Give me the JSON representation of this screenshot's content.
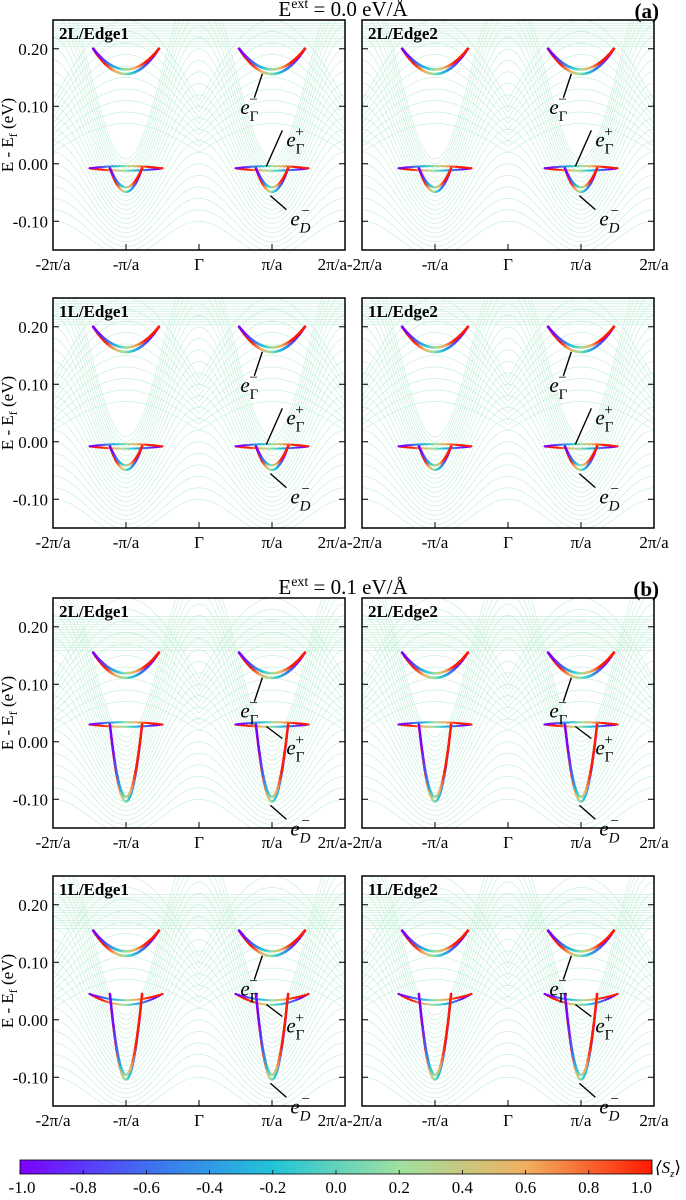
{
  "figure": {
    "sections": [
      {
        "label": "(a)",
        "field_title": "E^ext = 0.0 eV/Å",
        "field_prefix": "E",
        "field_sup": "ext",
        "field_value": " = 0.0 eV/Å"
      },
      {
        "label": "(b)",
        "field_title": "E^ext = 0.1 eV/Å",
        "field_prefix": "E",
        "field_sup": "ext",
        "field_value": " = 0.1 eV/Å"
      }
    ],
    "ylabel_main": "E - E",
    "ylabel_sub": "f",
    "ylabel_unit": " (eV)",
    "xticks": [
      "-2π/a",
      "-π/a",
      "Γ",
      "π/a",
      "2π/a"
    ]
  },
  "chart_data": [
    {
      "type": "line",
      "section": "(a)",
      "title": "2L/Edge1",
      "ylim": [
        -0.15,
        0.25
      ],
      "yticks": [
        "0.20",
        "0.10",
        "0.00",
        "-0.10"
      ],
      "xlim": [
        -2,
        2
      ],
      "series": [
        {
          "name": "upper",
          "min_energy": 0.16,
          "edge_energy": 0.2
        },
        {
          "name": "middle",
          "min_energy": -0.008,
          "edge_energy": -0.008
        },
        {
          "name": "lower",
          "min_energy": -0.045,
          "edge_energy": -0.008
        }
      ],
      "annotations": [
        {
          "text": "e_Γ^-",
          "state": "Γ",
          "sign": "−",
          "energy": 0.16
        },
        {
          "text": "e_Γ^+",
          "state": "Γ",
          "sign": "+",
          "energy": -0.008
        },
        {
          "text": "e_D^-",
          "state": "D",
          "sign": "−",
          "energy": -0.045
        }
      ]
    },
    {
      "type": "line",
      "section": "(a)",
      "title": "2L/Edge2",
      "ylim": [
        -0.15,
        0.25
      ],
      "yticks": [
        "0.20",
        "0.10",
        "0.00",
        "-0.10"
      ],
      "xlim": [
        -2,
        2
      ],
      "series": [
        {
          "name": "upper",
          "min_energy": 0.16,
          "edge_energy": 0.2
        },
        {
          "name": "middle",
          "min_energy": -0.008,
          "edge_energy": -0.008
        },
        {
          "name": "lower",
          "min_energy": -0.045,
          "edge_energy": -0.008
        }
      ],
      "annotations": [
        {
          "text": "e_Γ^-",
          "state": "Γ",
          "sign": "−",
          "energy": 0.16
        },
        {
          "text": "e_Γ^+",
          "state": "Γ",
          "sign": "+",
          "energy": -0.008
        },
        {
          "text": "e_D^-",
          "state": "D",
          "sign": "−",
          "energy": -0.045
        }
      ]
    },
    {
      "type": "line",
      "section": "(a)",
      "title": "1L/Edge1",
      "ylim": [
        -0.15,
        0.25
      ],
      "yticks": [
        "0.20",
        "0.10",
        "0.00",
        "-0.10"
      ],
      "xlim": [
        -2,
        2
      ],
      "series": [
        {
          "name": "upper",
          "min_energy": 0.16,
          "edge_energy": 0.2
        },
        {
          "name": "middle",
          "min_energy": -0.008,
          "edge_energy": -0.008
        },
        {
          "name": "lower",
          "min_energy": -0.045,
          "edge_energy": -0.008
        }
      ],
      "annotations": [
        {
          "text": "e_Γ^-",
          "state": "Γ",
          "sign": "−",
          "energy": 0.16
        },
        {
          "text": "e_Γ^+",
          "state": "Γ",
          "sign": "+",
          "energy": -0.008
        },
        {
          "text": "e_D^-",
          "state": "D",
          "sign": "−",
          "energy": -0.045
        }
      ]
    },
    {
      "type": "line",
      "section": "(a)",
      "title": "1L/Edge2",
      "ylim": [
        -0.15,
        0.25
      ],
      "yticks": [
        "0.20",
        "0.10",
        "0.00",
        "-0.10"
      ],
      "xlim": [
        -2,
        2
      ],
      "series": [
        {
          "name": "upper",
          "min_energy": 0.16,
          "edge_energy": 0.2
        },
        {
          "name": "middle",
          "min_energy": -0.008,
          "edge_energy": -0.008
        },
        {
          "name": "lower",
          "min_energy": -0.045,
          "edge_energy": -0.008
        }
      ],
      "annotations": [
        {
          "text": "e_Γ^-",
          "state": "Γ",
          "sign": "−",
          "energy": 0.16
        },
        {
          "text": "e_Γ^+",
          "state": "Γ",
          "sign": "+",
          "energy": -0.008
        },
        {
          "text": "e_D^-",
          "state": "D",
          "sign": "−",
          "energy": -0.045
        }
      ]
    },
    {
      "type": "line",
      "section": "(b)",
      "title": "2L/Edge1",
      "ylim": [
        -0.15,
        0.25
      ],
      "yticks": [
        "0.20",
        "0.10",
        "0.00",
        "-0.10"
      ],
      "xlim": [
        -2,
        2
      ],
      "series": [
        {
          "name": "upper",
          "min_energy": 0.115,
          "edge_energy": 0.155
        },
        {
          "name": "middle",
          "min_energy": 0.03,
          "edge_energy": 0.03
        },
        {
          "name": "lower",
          "min_energy": -0.1,
          "edge_energy": 0.03
        }
      ],
      "annotations": [
        {
          "text": "e_Γ^-",
          "state": "Γ",
          "sign": "−",
          "energy": 0.115
        },
        {
          "text": "e_Γ^+",
          "state": "Γ",
          "sign": "+",
          "energy": 0.03
        },
        {
          "text": "e_D^-",
          "state": "D",
          "sign": "−",
          "energy": -0.1
        }
      ]
    },
    {
      "type": "line",
      "section": "(b)",
      "title": "2L/Edge2",
      "ylim": [
        -0.15,
        0.25
      ],
      "yticks": [
        "0.20",
        "0.10",
        "0.00",
        "-0.10"
      ],
      "xlim": [
        -2,
        2
      ],
      "series": [
        {
          "name": "upper",
          "min_energy": 0.115,
          "edge_energy": 0.155
        },
        {
          "name": "middle",
          "min_energy": 0.03,
          "edge_energy": 0.03
        },
        {
          "name": "lower",
          "min_energy": -0.1,
          "edge_energy": 0.03
        }
      ],
      "annotations": [
        {
          "text": "e_Γ^-",
          "state": "Γ",
          "sign": "−",
          "energy": 0.115
        },
        {
          "text": "e_Γ^+",
          "state": "Γ",
          "sign": "+",
          "energy": 0.03
        },
        {
          "text": "e_D^-",
          "state": "D",
          "sign": "−",
          "energy": -0.1
        }
      ]
    },
    {
      "type": "line",
      "section": "(b)",
      "title": "1L/Edge1",
      "ylim": [
        -0.15,
        0.25
      ],
      "yticks": [
        "0.20",
        "0.10",
        "0.00",
        "-0.10"
      ],
      "xlim": [
        -2,
        2
      ],
      "series": [
        {
          "name": "upper",
          "min_energy": 0.115,
          "edge_energy": 0.155
        },
        {
          "name": "middle",
          "min_energy": 0.03,
          "edge_energy": 0.045
        },
        {
          "name": "lower",
          "min_energy": -0.1,
          "edge_energy": 0.045
        }
      ],
      "annotations": [
        {
          "text": "e_Γ^-",
          "state": "Γ",
          "sign": "−",
          "energy": 0.115
        },
        {
          "text": "e_Γ^+",
          "state": "Γ",
          "sign": "+",
          "energy": 0.03
        },
        {
          "text": "e_D^-",
          "state": "D",
          "sign": "−",
          "energy": -0.1
        }
      ]
    },
    {
      "type": "line",
      "section": "(b)",
      "title": "1L/Edge2",
      "ylim": [
        -0.15,
        0.25
      ],
      "yticks": [
        "0.20",
        "0.10",
        "0.00",
        "-0.10"
      ],
      "xlim": [
        -2,
        2
      ],
      "series": [
        {
          "name": "upper",
          "min_energy": 0.115,
          "edge_energy": 0.155
        },
        {
          "name": "middle",
          "min_energy": 0.03,
          "edge_energy": 0.045
        },
        {
          "name": "lower",
          "min_energy": -0.1,
          "edge_energy": 0.045
        }
      ],
      "annotations": [
        {
          "text": "e_Γ^-",
          "state": "Γ",
          "sign": "−",
          "energy": 0.115
        },
        {
          "text": "e_Γ^+",
          "state": "Γ",
          "sign": "+",
          "energy": 0.03
        },
        {
          "text": "e_D^-",
          "state": "D",
          "sign": "−",
          "energy": -0.1
        }
      ]
    }
  ],
  "colorbar": {
    "label": "⟨S_z⟩",
    "label_main": "⟨S",
    "label_sub": "z",
    "label_close": "⟩",
    "min": -1.0,
    "max": 1.0,
    "ticks": [
      "-1.0",
      "-0.8",
      "-0.6",
      "-0.4",
      "-0.2",
      "0.0",
      "0.2",
      "0.4",
      "0.6",
      "0.8",
      "1.0"
    ],
    "colors": [
      "#7b00ff",
      "#3f6ff0",
      "#22c4d8",
      "#9fe0a0",
      "#f0b060",
      "#ff1a00"
    ]
  },
  "colors": {
    "background_bands": "#8fe0b8",
    "spin_up": "#ff1a00",
    "spin_down": "#7b00ff"
  }
}
